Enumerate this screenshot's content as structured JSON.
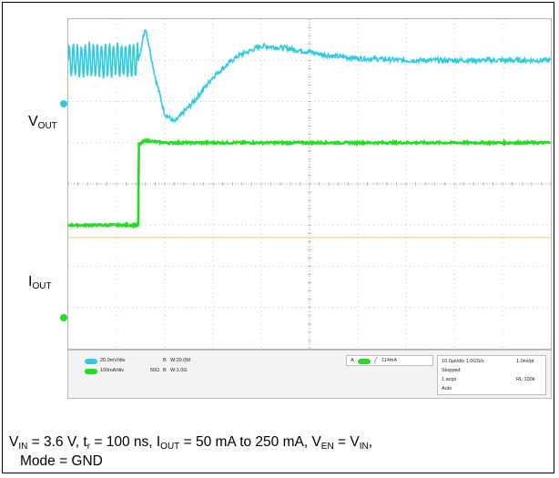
{
  "chart_data": {
    "type": "line",
    "title": "",
    "xlabel": "",
    "ylabel": "",
    "grid": true,
    "divisions": {
      "x": 10,
      "y": 8
    },
    "series": [
      {
        "name": "VOUT",
        "color": "#2ecbe0",
        "x": [
          0,
          0.3,
          0.6,
          0.9,
          1.2,
          1.45,
          1.6,
          1.8,
          2.0,
          2.2,
          2.6,
          3.0,
          3.5,
          4.0,
          4.5,
          5.0,
          5.5,
          6.0,
          7.0,
          8.0,
          9.0,
          10.0
        ],
        "y": [
          3.0,
          3.0,
          3.0,
          3.0,
          3.0,
          3.0,
          3.8,
          2.6,
          1.7,
          1.5,
          2.0,
          2.6,
          3.1,
          3.35,
          3.3,
          3.2,
          3.1,
          3.05,
          3.0,
          3.0,
          3.0,
          3.0
        ],
        "ripple_until": 1.45
      },
      {
        "name": "IOUT",
        "color": "#22dd22",
        "x": [
          0,
          1.45,
          1.46,
          1.6,
          2.0,
          3.0,
          5.0,
          10.0
        ],
        "y": [
          -1.0,
          -1.0,
          0.95,
          1.05,
          1.0,
          1.0,
          1.0,
          1.0
        ]
      }
    ]
  },
  "labels": {
    "vout_main": "V",
    "vout_sub": "OUT",
    "iout_main": "I",
    "iout_sub": "OUT"
  },
  "status": {
    "ch1_scale": "20.0mV/div",
    "ch4_scale": "100mA/div",
    "ch1_bw": "B",
    "ch1_bw_val": "W:20.0M",
    "ch4_imp": "50Ω",
    "ch4_bw": "B",
    "ch4_bw_val": "W:1.0G",
    "trig_label": "A",
    "trig_value": "114mA",
    "timebase": "10.0µs/div 1.0GS/s",
    "sample": "1.0ns/pt",
    "state": "Stopped",
    "acqs": "1 acqs",
    "record": "RL:100k",
    "mode": "Auto"
  },
  "caption": {
    "vin": "V",
    "vin_sub": "IN",
    "vin_eq": " = 3.6 V, t",
    "tr_sub": "r",
    "tr_eq": " = 100 ns, I",
    "iout_sub": "OUT",
    "iout_eq": " = 50 mA to 250 mA, V",
    "ven_sub": "EN",
    "ven_eq": " = V",
    "ven_in_sub": "IN",
    "tail": ",",
    "line2": "Mode = GND"
  },
  "colors": {
    "vout": "#2ecbe0",
    "iout": "#22dd22",
    "grid": "#c8c8c8",
    "trigger_line": "#f2c38a"
  }
}
